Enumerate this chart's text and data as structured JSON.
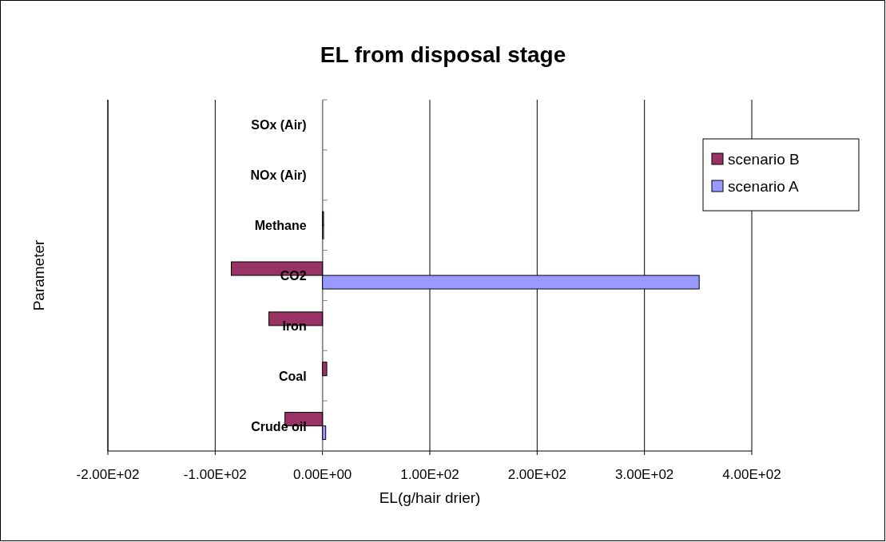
{
  "chart_data": {
    "type": "bar",
    "orientation": "horizontal",
    "title": "EL from disposal stage",
    "xlabel": "EL(g/hair drier)",
    "ylabel": "Parameter",
    "categories": [
      "SOx (Air)",
      "NOx (Air)",
      "Methane",
      "CO2",
      "Iron",
      "Coal",
      "Crude oil"
    ],
    "series": [
      {
        "name": "scenario B",
        "color": "#993366",
        "values": [
          0,
          0,
          1,
          -85,
          -50,
          4,
          -35
        ]
      },
      {
        "name": "scenario A",
        "color": "#9999ff",
        "values": [
          0,
          0,
          1,
          351,
          0,
          0,
          3
        ]
      }
    ],
    "xlim": [
      -200,
      400
    ],
    "xticks": [
      {
        "value": -200,
        "label": "-2.00E+02"
      },
      {
        "value": -100,
        "label": "-1.00E+02"
      },
      {
        "value": 0,
        "label": "0.00E+00"
      },
      {
        "value": 100,
        "label": "1.00E+02"
      },
      {
        "value": 200,
        "label": "2.00E+02"
      },
      {
        "value": 300,
        "label": "3.00E+02"
      },
      {
        "value": 400,
        "label": "4.00E+02"
      }
    ],
    "grid": "x",
    "legend": "right"
  }
}
